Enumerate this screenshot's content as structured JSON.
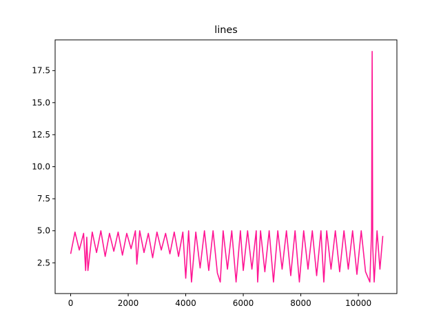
{
  "chart_data": {
    "type": "line",
    "title": "lines",
    "xlabel": "",
    "ylabel": "",
    "xlim": [
      -540,
      11340
    ],
    "ylim": [
      0.1,
      19.9
    ],
    "x_ticks": [
      0,
      2000,
      4000,
      6000,
      8000,
      10000
    ],
    "x_tick_labels": [
      "0",
      "2000",
      "4000",
      "6000",
      "8000",
      "10000"
    ],
    "y_ticks": [
      2.5,
      5.0,
      7.5,
      10.0,
      12.5,
      15.0,
      17.5
    ],
    "y_tick_labels": [
      "2.5",
      "5.0",
      "7.5",
      "10.0",
      "12.5",
      "15.0",
      "17.5"
    ],
    "grid": false,
    "legend": "none",
    "line_color": "#ff1493",
    "series": [
      {
        "x": [
          0,
          150,
          300,
          450,
          520,
          560,
          600,
          750,
          900,
          1050,
          1200,
          1350,
          1500,
          1650,
          1800,
          1950,
          2100,
          2250,
          2300,
          2400,
          2550,
          2700,
          2850,
          3000,
          3150,
          3300,
          3450,
          3600,
          3750,
          3900,
          4000,
          4100,
          4200,
          4350,
          4500,
          4650,
          4800,
          4950,
          5100,
          5200,
          5300,
          5450,
          5600,
          5750,
          5900,
          6000,
          6150,
          6300,
          6450,
          6500,
          6600,
          6750,
          6900,
          7050,
          7200,
          7350,
          7500,
          7650,
          7800,
          7950,
          8100,
          8250,
          8400,
          8550,
          8700,
          8800,
          8900,
          9050,
          9200,
          9350,
          9500,
          9650,
          9800,
          9950,
          10100,
          10250,
          10400,
          10460,
          10480,
          10500,
          10550,
          10650,
          10750,
          10850
        ],
        "y": [
          3.2,
          4.9,
          3.5,
          4.8,
          1.9,
          4.5,
          1.9,
          4.9,
          3.3,
          5.0,
          3.0,
          4.8,
          3.4,
          4.9,
          3.1,
          4.8,
          3.6,
          5.0,
          2.4,
          5.0,
          3.3,
          4.8,
          2.9,
          4.9,
          3.5,
          4.8,
          3.2,
          4.9,
          3.0,
          4.9,
          1.3,
          5.0,
          1.0,
          4.9,
          2.1,
          5.0,
          1.9,
          5.0,
          1.7,
          1.0,
          5.0,
          2.0,
          5.0,
          1.0,
          5.0,
          1.9,
          5.0,
          2.0,
          5.0,
          1.0,
          5.0,
          1.8,
          5.0,
          1.0,
          5.0,
          2.0,
          5.0,
          1.5,
          5.0,
          1.0,
          5.0,
          2.0,
          5.0,
          1.5,
          5.0,
          1.0,
          5.0,
          2.0,
          5.0,
          1.8,
          5.0,
          2.0,
          5.0,
          1.6,
          5.0,
          1.8,
          1.0,
          5.0,
          19.0,
          3.8,
          1.0,
          5.0,
          2.0,
          4.6
        ]
      }
    ]
  }
}
